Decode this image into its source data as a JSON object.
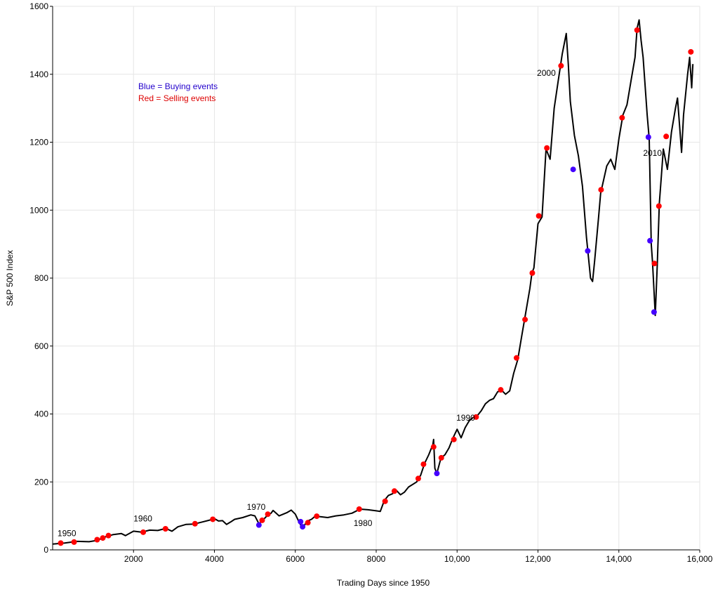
{
  "chart_data": {
    "type": "line",
    "title": "",
    "xlabel": "Trading Days since 1950",
    "ylabel": "S&P 500 Index",
    "xlim": [
      0,
      16000
    ],
    "ylim": [
      0,
      1600
    ],
    "grid": true,
    "x_ticks": [
      {
        "value": 2000,
        "label": "2000"
      },
      {
        "value": 4000,
        "label": "4000"
      },
      {
        "value": 6000,
        "label": "6000"
      },
      {
        "value": 8000,
        "label": "8000"
      },
      {
        "value": 10000,
        "label": "10,000"
      },
      {
        "value": 12000,
        "label": "12,000"
      },
      {
        "value": 14000,
        "label": "14,000"
      },
      {
        "value": 16000,
        "label": "16,000"
      }
    ],
    "y_ticks": [
      {
        "value": 0,
        "label": "0"
      },
      {
        "value": 200,
        "label": "200"
      },
      {
        "value": 400,
        "label": "400"
      },
      {
        "value": 600,
        "label": "600"
      },
      {
        "value": 800,
        "label": "800"
      },
      {
        "value": 1000,
        "label": "1000"
      },
      {
        "value": 1200,
        "label": "1200"
      },
      {
        "value": 1400,
        "label": "1400"
      },
      {
        "value": 1600,
        "label": "1600"
      }
    ],
    "line_color": "#000000",
    "series": [
      {
        "values": [
          [
            0,
            17
          ],
          [
            300,
            20
          ],
          [
            600,
            25
          ],
          [
            900,
            24
          ],
          [
            1100,
            28
          ],
          [
            1300,
            38
          ],
          [
            1500,
            45
          ],
          [
            1700,
            48
          ],
          [
            1800,
            42
          ],
          [
            2000,
            55
          ],
          [
            2200,
            52
          ],
          [
            2400,
            58
          ],
          [
            2600,
            57
          ],
          [
            2800,
            63
          ],
          [
            2950,
            55
          ],
          [
            3100,
            68
          ],
          [
            3300,
            75
          ],
          [
            3500,
            76
          ],
          [
            3700,
            82
          ],
          [
            3900,
            88
          ],
          [
            4000,
            92
          ],
          [
            4100,
            85
          ],
          [
            4200,
            86
          ],
          [
            4300,
            75
          ],
          [
            4400,
            82
          ],
          [
            4500,
            90
          ],
          [
            4700,
            95
          ],
          [
            4900,
            103
          ],
          [
            5000,
            100
          ],
          [
            5100,
            77
          ],
          [
            5200,
            88
          ],
          [
            5300,
            100
          ],
          [
            5400,
            108
          ],
          [
            5450,
            116
          ],
          [
            5600,
            100
          ],
          [
            5800,
            110
          ],
          [
            5900,
            117
          ],
          [
            6000,
            105
          ],
          [
            6100,
            80
          ],
          [
            6150,
            70
          ],
          [
            6200,
            68
          ],
          [
            6300,
            85
          ],
          [
            6400,
            90
          ],
          [
            6500,
            100
          ],
          [
            6600,
            98
          ],
          [
            6800,
            95
          ],
          [
            7000,
            100
          ],
          [
            7200,
            103
          ],
          [
            7400,
            108
          ],
          [
            7600,
            120
          ],
          [
            7800,
            118
          ],
          [
            8000,
            115
          ],
          [
            8100,
            113
          ],
          [
            8200,
            145
          ],
          [
            8300,
            160
          ],
          [
            8400,
            165
          ],
          [
            8500,
            175
          ],
          [
            8600,
            162
          ],
          [
            8700,
            170
          ],
          [
            8800,
            185
          ],
          [
            9000,
            200
          ],
          [
            9100,
            220
          ],
          [
            9200,
            255
          ],
          [
            9300,
            280
          ],
          [
            9400,
            310
          ],
          [
            9420,
            325
          ],
          [
            9450,
            240
          ],
          [
            9500,
            225
          ],
          [
            9600,
            270
          ],
          [
            9700,
            280
          ],
          [
            9800,
            300
          ],
          [
            9900,
            330
          ],
          [
            10000,
            355
          ],
          [
            10100,
            330
          ],
          [
            10200,
            360
          ],
          [
            10300,
            380
          ],
          [
            10400,
            390
          ],
          [
            10500,
            395
          ],
          [
            10600,
            410
          ],
          [
            10700,
            430
          ],
          [
            10800,
            440
          ],
          [
            10900,
            445
          ],
          [
            11000,
            465
          ],
          [
            11100,
            470
          ],
          [
            11200,
            458
          ],
          [
            11300,
            468
          ],
          [
            11400,
            520
          ],
          [
            11500,
            560
          ],
          [
            11600,
            630
          ],
          [
            11700,
            700
          ],
          [
            11800,
            770
          ],
          [
            11850,
            815
          ],
          [
            11900,
            830
          ],
          [
            12000,
            960
          ],
          [
            12100,
            980
          ],
          [
            12200,
            1180
          ],
          [
            12300,
            1150
          ],
          [
            12400,
            1300
          ],
          [
            12500,
            1380
          ],
          [
            12600,
            1460
          ],
          [
            12700,
            1520
          ],
          [
            12750,
            1430
          ],
          [
            12800,
            1320
          ],
          [
            12900,
            1220
          ],
          [
            13000,
            1160
          ],
          [
            13100,
            1070
          ],
          [
            13200,
            920
          ],
          [
            13250,
            860
          ],
          [
            13300,
            800
          ],
          [
            13350,
            790
          ],
          [
            13400,
            850
          ],
          [
            13500,
            980
          ],
          [
            13550,
            1050
          ],
          [
            13700,
            1130
          ],
          [
            13800,
            1150
          ],
          [
            13900,
            1120
          ],
          [
            14000,
            1210
          ],
          [
            14100,
            1280
          ],
          [
            14200,
            1310
          ],
          [
            14300,
            1380
          ],
          [
            14400,
            1450
          ],
          [
            14450,
            1535
          ],
          [
            14500,
            1560
          ],
          [
            14550,
            1500
          ],
          [
            14600,
            1450
          ],
          [
            14700,
            1280
          ],
          [
            14750,
            1210
          ],
          [
            14800,
            900
          ],
          [
            14830,
            850
          ],
          [
            14870,
            760
          ],
          [
            14900,
            690
          ],
          [
            14950,
            840
          ],
          [
            15000,
            1020
          ],
          [
            15050,
            1100
          ],
          [
            15100,
            1180
          ],
          [
            15200,
            1120
          ],
          [
            15300,
            1230
          ],
          [
            15400,
            1300
          ],
          [
            15450,
            1330
          ],
          [
            15500,
            1250
          ],
          [
            15550,
            1170
          ],
          [
            15600,
            1280
          ],
          [
            15700,
            1400
          ],
          [
            15750,
            1450
          ],
          [
            15800,
            1360
          ],
          [
            15830,
            1430
          ]
        ]
      }
    ],
    "markers": {
      "buying_color": "#4400ff",
      "selling_color": "#ff0000",
      "buying": [
        [
          5100,
          73
        ],
        [
          6130,
          83
        ],
        [
          6180,
          68
        ],
        [
          9500,
          225
        ],
        [
          12870,
          1120
        ],
        [
          13230,
          880
        ],
        [
          14730,
          1215
        ],
        [
          14770,
          910
        ],
        [
          14870,
          700
        ]
      ],
      "selling": [
        [
          200,
          20
        ],
        [
          530,
          23
        ],
        [
          1100,
          30
        ],
        [
          1240,
          35
        ],
        [
          1380,
          42
        ],
        [
          2240,
          52
        ],
        [
          2790,
          62
        ],
        [
          3520,
          77
        ],
        [
          3960,
          90
        ],
        [
          5180,
          87
        ],
        [
          5320,
          105
        ],
        [
          6310,
          80
        ],
        [
          6530,
          99
        ],
        [
          7580,
          120
        ],
        [
          8220,
          143
        ],
        [
          8450,
          173
        ],
        [
          9040,
          210
        ],
        [
          9170,
          252
        ],
        [
          9420,
          303
        ],
        [
          9610,
          271
        ],
        [
          9920,
          325
        ],
        [
          10470,
          391
        ],
        [
          11080,
          471
        ],
        [
          11470,
          565
        ],
        [
          11680,
          678
        ],
        [
          11860,
          815
        ],
        [
          12020,
          983
        ],
        [
          12220,
          1183
        ],
        [
          12570,
          1425
        ],
        [
          13560,
          1060
        ],
        [
          14080,
          1272
        ],
        [
          14450,
          1530
        ],
        [
          14880,
          843
        ],
        [
          14990,
          1012
        ],
        [
          15170,
          1217
        ],
        [
          15780,
          1466
        ]
      ]
    },
    "annotations": [
      {
        "text": "1950",
        "x": 120,
        "y": 40
      },
      {
        "text": "1960",
        "x": 2000,
        "y": 84
      },
      {
        "text": "1970",
        "x": 4800,
        "y": 118
      },
      {
        "text": "1980",
        "x": 7440,
        "y": 70
      },
      {
        "text": "1990",
        "x": 9980,
        "y": 380
      },
      {
        "text": "2000",
        "x": 11975,
        "y": 1395
      },
      {
        "text": "2010",
        "x": 14600,
        "y": 1160
      }
    ],
    "legend": {
      "placement": "upper-left",
      "entries": [
        {
          "text": "Blue = Buying events",
          "color": "#2200cc"
        },
        {
          "text": "Red = Selling events",
          "color": "#dd0000"
        }
      ]
    }
  }
}
